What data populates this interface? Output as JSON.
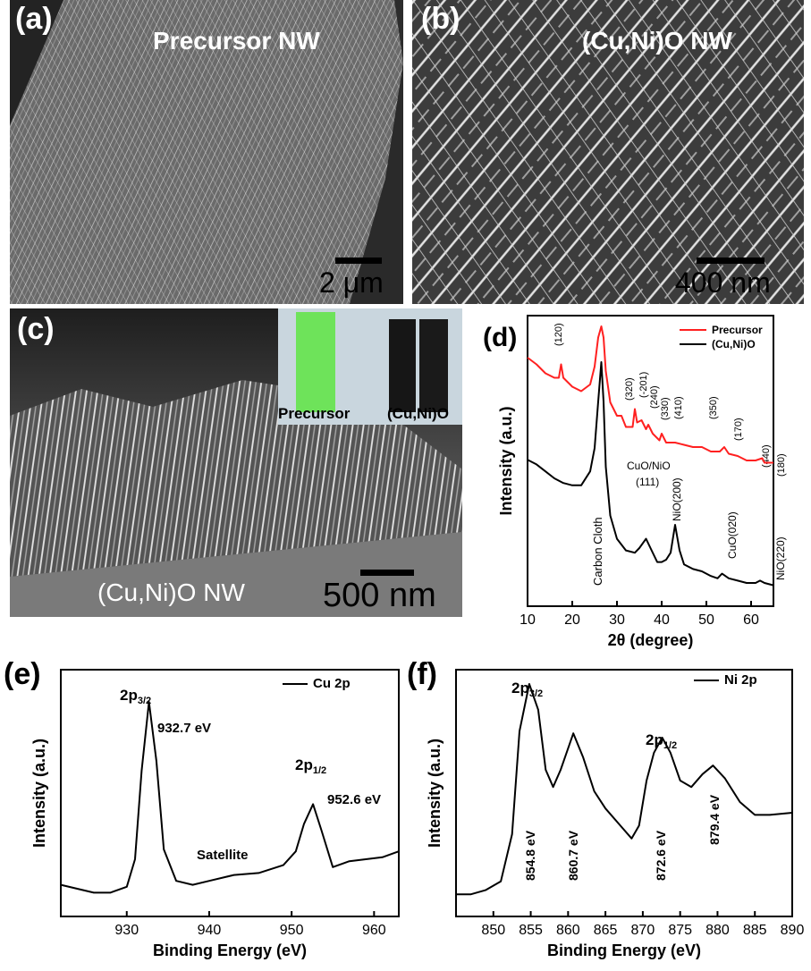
{
  "panels": {
    "a": {
      "label": "(a)",
      "title": "Precursor NW",
      "scale": "2 μm"
    },
    "b": {
      "label": "(b)",
      "title": "(Cu,Ni)O NW",
      "scale": "400 nm"
    },
    "c": {
      "label": "(c)",
      "title": "(Cu,Ni)O NW",
      "scale": "500 nm",
      "inset_left": "Precursor",
      "inset_right": "(Cu,Ni)O"
    },
    "d": {
      "label": "(d)"
    },
    "e": {
      "label": "(e)"
    },
    "f": {
      "label": "(f)"
    }
  },
  "colors": {
    "precursor": "#ff2020",
    "cuni": "#000000",
    "sem_dark": "#2a2a2a",
    "inset_green": "#6ee35a"
  },
  "chart_data": [
    {
      "id": "d",
      "type": "line",
      "xlabel": "2θ (degree)",
      "ylabel": "Intensity (a.u.)",
      "xlim": [
        10,
        65
      ],
      "xticks": [
        10,
        20,
        30,
        40,
        50,
        60
      ],
      "legend": [
        "Precursor",
        "(Cu,Ni)O"
      ],
      "legend_position": "top-right",
      "series": [
        {
          "name": "Precursor",
          "color": "#ff2020",
          "x": [
            10,
            12,
            14,
            16,
            17,
            17.5,
            18,
            19,
            20,
            22,
            24,
            25,
            25.8,
            26.5,
            27,
            27.5,
            28.5,
            30,
            31,
            32,
            33.5,
            34,
            34.5,
            35.5,
            36.5,
            37,
            38,
            39.5,
            40,
            41,
            43,
            45,
            47,
            49,
            51,
            53,
            54,
            55,
            57,
            59,
            61,
            62.5,
            63,
            65
          ],
          "y": [
            0.86,
            0.83,
            0.79,
            0.77,
            0.77,
            0.83,
            0.77,
            0.75,
            0.73,
            0.71,
            0.74,
            0.82,
            0.95,
            1.0,
            0.95,
            0.8,
            0.66,
            0.6,
            0.6,
            0.55,
            0.55,
            0.63,
            0.57,
            0.58,
            0.54,
            0.56,
            0.52,
            0.49,
            0.52,
            0.48,
            0.48,
            0.47,
            0.46,
            0.46,
            0.44,
            0.44,
            0.46,
            0.43,
            0.42,
            0.4,
            0.4,
            0.41,
            0.39,
            0.39
          ]
        },
        {
          "name": "(Cu,Ni)O",
          "color": "#000000",
          "x": [
            10,
            12,
            14,
            16,
            18,
            20,
            22,
            24,
            25,
            25.8,
            26.5,
            27,
            27.5,
            28.5,
            30,
            32,
            34,
            35,
            36.5,
            37.5,
            39,
            40,
            41,
            42,
            43,
            44,
            45,
            47,
            49,
            51,
            52.5,
            53.5,
            55,
            57,
            59,
            61,
            62,
            63,
            65
          ],
          "y": [
            0.58,
            0.56,
            0.53,
            0.5,
            0.48,
            0.47,
            0.47,
            0.53,
            0.63,
            0.83,
            1.0,
            0.83,
            0.55,
            0.34,
            0.24,
            0.19,
            0.18,
            0.2,
            0.24,
            0.2,
            0.14,
            0.14,
            0.15,
            0.18,
            0.3,
            0.19,
            0.13,
            0.11,
            0.1,
            0.08,
            0.07,
            0.09,
            0.07,
            0.06,
            0.05,
            0.05,
            0.06,
            0.05,
            0.04
          ]
        }
      ],
      "annotations_precursor": [
        "(120)",
        "(320)",
        "(-201)",
        "(240)",
        "(330)",
        "(410)",
        "(350)",
        "(170)",
        "(440)",
        "(180)"
      ],
      "annotations_cuni": [
        "Carbon Cloth",
        "CuO/NiO",
        "(111)",
        "NiO(200)",
        "CuO(020)",
        "NiO(220)"
      ]
    },
    {
      "id": "e",
      "type": "line",
      "xlabel": "Binding Energy (eV)",
      "ylabel": "Intensity (a.u.)",
      "xlim": [
        922,
        963
      ],
      "xticks": [
        930,
        940,
        950,
        960
      ],
      "legend": [
        "Cu 2p"
      ],
      "legend_position": "top-right",
      "series": [
        {
          "name": "Cu 2p",
          "color": "#000000",
          "x": [
            922,
            924,
            926,
            928,
            930,
            931,
            931.8,
            932.7,
            933.6,
            934.5,
            936,
            938,
            940,
            943,
            946,
            949,
            950.5,
            951.5,
            952.6,
            953.6,
            955,
            957,
            959,
            961,
            963
          ],
          "y": [
            0.07,
            0.05,
            0.03,
            0.03,
            0.06,
            0.2,
            0.65,
            1.0,
            0.7,
            0.25,
            0.09,
            0.07,
            0.09,
            0.12,
            0.13,
            0.17,
            0.24,
            0.38,
            0.48,
            0.35,
            0.16,
            0.19,
            0.2,
            0.21,
            0.24
          ]
        }
      ],
      "annotations": [
        "2p3/2",
        "932.7 eV",
        "2p1/2",
        "952.6 eV",
        "Satellite"
      ]
    },
    {
      "id": "f",
      "type": "line",
      "xlabel": "Binding Energy (eV)",
      "ylabel": "Intensity (a.u.)",
      "xlim": [
        845,
        890
      ],
      "xticks": [
        850,
        855,
        860,
        865,
        870,
        875,
        880,
        885,
        890
      ],
      "legend": [
        "Ni 2p"
      ],
      "legend_position": "top-right",
      "series": [
        {
          "name": "Ni 2p",
          "color": "#000000",
          "x": [
            845,
            847,
            849,
            851,
            852.5,
            853.5,
            854.8,
            856,
            857,
            858,
            859,
            860.7,
            862,
            863.5,
            865,
            867,
            868.5,
            869.5,
            870.5,
            871.5,
            872.6,
            873.7,
            875,
            876.5,
            878,
            879.4,
            881,
            883,
            885,
            887,
            890
          ],
          "y": [
            0.02,
            0.02,
            0.04,
            0.08,
            0.3,
            0.78,
            1.0,
            0.88,
            0.6,
            0.52,
            0.6,
            0.77,
            0.66,
            0.5,
            0.42,
            0.34,
            0.28,
            0.34,
            0.55,
            0.68,
            0.75,
            0.68,
            0.55,
            0.52,
            0.58,
            0.62,
            0.56,
            0.45,
            0.39,
            0.39,
            0.4
          ]
        }
      ],
      "annotations": [
        "2p3/2",
        "2p1/2",
        "854.8 eV",
        "860.7 eV",
        "872.6 eV",
        "879.4 eV"
      ]
    }
  ]
}
